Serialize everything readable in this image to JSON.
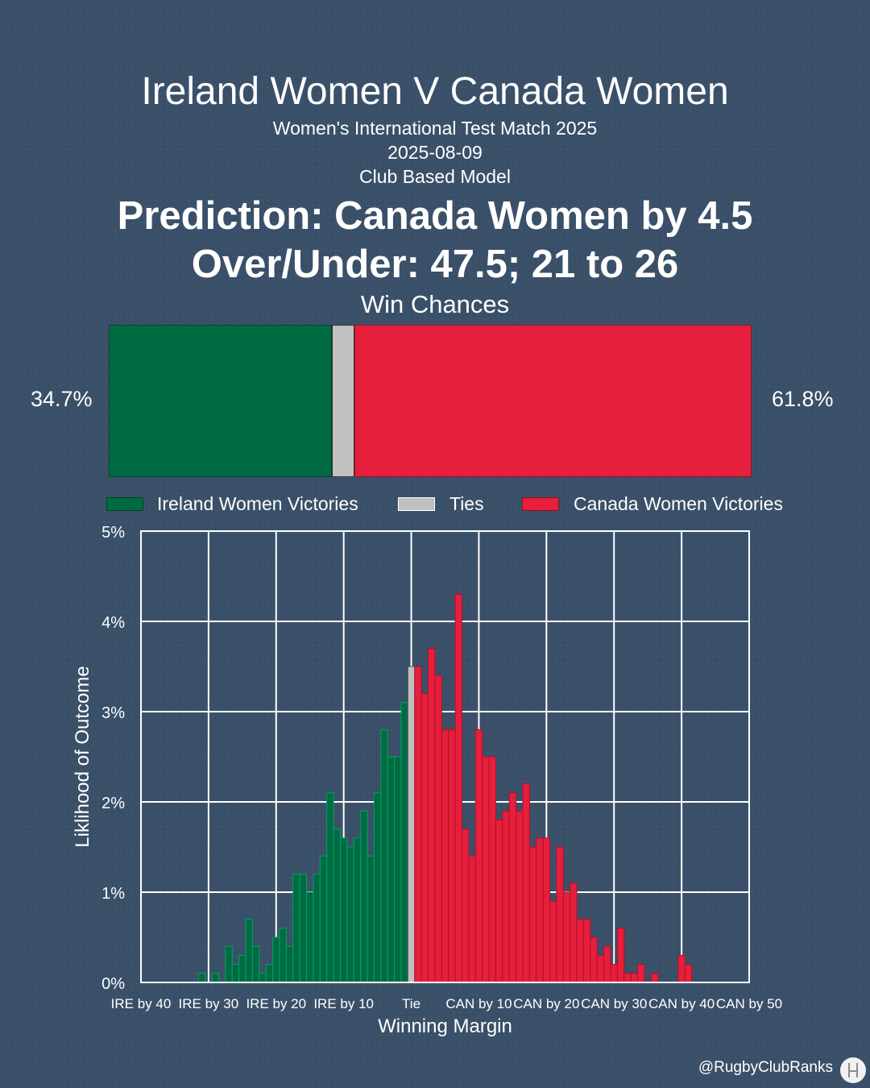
{
  "header": {
    "title": "Ireland Women V Canada Women",
    "competition": "Women's International Test Match 2025",
    "date": "2025-08-09",
    "model": "Club Based Model",
    "prediction": "Prediction: Canada Women by 4.5",
    "over_under": "Over/Under: 47.5; 21 to 26",
    "win_chances_label": "Win Chances"
  },
  "win_chances": {
    "home_pct_text": "34.7%",
    "away_pct_text": "61.8%",
    "home": 34.7,
    "tie": 3.5,
    "away": 61.8
  },
  "legend": {
    "home": "Ireland Women Victories",
    "tie": "Ties",
    "away": "Canada Women Victories"
  },
  "colors": {
    "home": "#006b42",
    "tie": "#c0c0c0",
    "away": "#e51f3c",
    "background": "#3a5069",
    "grid": "#ffffff"
  },
  "chart_data": {
    "type": "bar",
    "xlabel": "Winning Margin",
    "ylabel": "Liklihood of Outcome",
    "xlim": [
      -40,
      50
    ],
    "ylim": [
      0,
      5
    ],
    "y_ticks": [
      0,
      1,
      2,
      3,
      4,
      5
    ],
    "y_tick_labels": [
      "0%",
      "1%",
      "2%",
      "3%",
      "4%",
      "5%"
    ],
    "x_ticks": [
      -40,
      -30,
      -20,
      -10,
      0,
      10,
      20,
      30,
      40,
      50
    ],
    "x_tick_labels": [
      "IRE by 40",
      "IRE by 30",
      "IRE by 20",
      "IRE by 10",
      "Tie",
      "CAN by 10",
      "CAN by 20",
      "CAN by 30",
      "CAN by 40",
      "CAN by 50"
    ],
    "grid": true,
    "series": [
      {
        "name": "Ireland Women Victories",
        "x": [
          -31,
          -30,
          -29,
          -28,
          -27,
          -26,
          -25,
          -24,
          -23,
          -22,
          -21,
          -20,
          -19,
          -18,
          -17,
          -16,
          -15,
          -14,
          -13,
          -12,
          -11,
          -10,
          -9,
          -8,
          -7,
          -6,
          -5,
          -4,
          -3,
          -2,
          -1
        ],
        "values": [
          0.1,
          0.0,
          0.1,
          0.0,
          0.4,
          0.2,
          0.3,
          0.7,
          0.4,
          0.1,
          0.2,
          0.5,
          0.6,
          0.4,
          1.2,
          1.2,
          1.0,
          1.2,
          1.4,
          2.1,
          1.7,
          1.6,
          1.5,
          1.6,
          1.9,
          1.4,
          2.1,
          2.8,
          2.5,
          2.5,
          3.1
        ]
      },
      {
        "name": "Ties",
        "x": [
          0
        ],
        "values": [
          3.5
        ]
      },
      {
        "name": "Canada Women Victories",
        "x": [
          1,
          2,
          3,
          4,
          5,
          6,
          7,
          8,
          9,
          10,
          11,
          12,
          13,
          14,
          15,
          16,
          17,
          18,
          19,
          20,
          21,
          22,
          23,
          24,
          25,
          26,
          27,
          28,
          29,
          30,
          31,
          32,
          33,
          34,
          35,
          36,
          37,
          38,
          39,
          40,
          41,
          42
        ],
        "values": [
          3.5,
          3.2,
          3.7,
          3.4,
          2.8,
          2.8,
          4.3,
          1.7,
          1.4,
          2.8,
          2.5,
          2.5,
          1.8,
          1.9,
          2.1,
          1.9,
          2.2,
          1.5,
          1.6,
          1.6,
          0.9,
          1.5,
          1.0,
          1.1,
          0.7,
          0.7,
          0.5,
          0.3,
          0.4,
          0.2,
          0.6,
          0.1,
          0.1,
          0.2,
          0.0,
          0.1,
          0.0,
          0.0,
          0.0,
          0.3,
          0.2,
          0.0
        ]
      }
    ]
  },
  "footer": {
    "credit": "@RugbyClubRanks"
  }
}
